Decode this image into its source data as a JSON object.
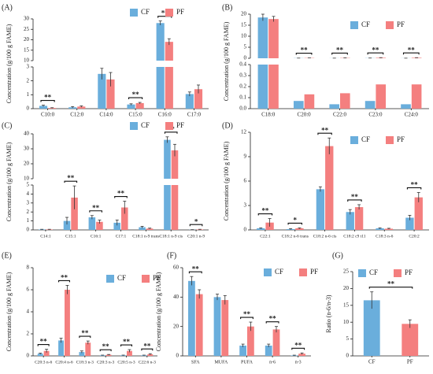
{
  "chart_data": [
    {
      "panel_label": "(A)",
      "type": "bar",
      "y_label": "Concentration (g/100 g FAME)",
      "legend": "upper right",
      "categories": [
        "C10:0",
        "C12:0",
        "C14:0",
        "C15:0",
        "C16:0",
        "C17:0"
      ],
      "series": [
        {
          "name": "CF",
          "color": "#6aaedc",
          "values": [
            0.2,
            0.1,
            2.5,
            0.3,
            28,
            1.05
          ],
          "errors": [
            0.05,
            0.05,
            0.4,
            0.05,
            1,
            0.15
          ]
        },
        {
          "name": "PF",
          "color": "#f47f7f",
          "values": [
            0.05,
            0.15,
            2.1,
            0.4,
            19,
            1.4
          ],
          "errors": [
            0.02,
            0.05,
            0.5,
            0.05,
            1.5,
            0.3
          ]
        }
      ],
      "significance": [
        "**",
        null,
        null,
        "**",
        "**",
        null
      ],
      "segments": [
        {
          "ylim": [
            0,
            3
          ],
          "yticks": [
            0,
            1,
            2,
            3
          ]
        },
        {
          "ylim": [
            10,
            30
          ],
          "yticks": [
            10,
            15,
            20,
            25,
            30
          ]
        }
      ]
    },
    {
      "panel_label": "(B)",
      "type": "bar",
      "y_label": "Concentration (g/100 g FAME)",
      "legend": "upper right",
      "categories": [
        "C18:0",
        "C20:0",
        "C22:0",
        "C23:0",
        "C24:0"
      ],
      "series": [
        {
          "name": "CF",
          "color": "#6aaedc",
          "values": [
            18.5,
            0.07,
            0.04,
            0.07,
            0.04
          ],
          "errors": [
            1.5,
            0.01,
            0.02,
            0.03,
            0.01
          ]
        },
        {
          "name": "PF",
          "color": "#f47f7f",
          "values": [
            17.8,
            0.13,
            0.14,
            0.22,
            0.22
          ],
          "errors": [
            1.2,
            0.03,
            0.06,
            0.07,
            0.06
          ]
        }
      ],
      "significance": [
        null,
        "**",
        "**",
        "**",
        "**"
      ],
      "segments": [
        {
          "ylim": [
            0,
            0.4
          ],
          "yticks": [
            {
              "value": 0,
              "label": "0.0"
            },
            0.1,
            0.2,
            0.3,
            0.4
          ]
        },
        {
          "ylim": [
            0,
            20
          ],
          "yticks": [
            0,
            5,
            10,
            15,
            20
          ]
        }
      ]
    },
    {
      "panel_label": "(C)",
      "type": "bar",
      "y_label": "Concentration (g/100 g FAME)",
      "legend": "upper right",
      "categories": [
        "C14:1",
        "C15:1",
        "C16:1",
        "C17:1",
        "C18:1 n-9 trans",
        "C18:1 n-9 cis",
        "C20:1 n-9"
      ],
      "series": [
        {
          "name": "CF",
          "color": "#6aaedc",
          "values": [
            0.05,
            1.0,
            1.4,
            0.8,
            0.3,
            36,
            0.02
          ],
          "errors": [
            0.02,
            0.4,
            0.2,
            0.3,
            0.1,
            2,
            0.01
          ]
        },
        {
          "name": "PF",
          "color": "#f47f7f",
          "values": [
            0.05,
            3.6,
            0.9,
            2.5,
            0.15,
            29,
            0.05
          ],
          "errors": [
            0.02,
            1.3,
            0.2,
            0.7,
            0.05,
            4,
            0.02
          ]
        }
      ],
      "significance": [
        null,
        "**",
        "**",
        "**",
        null,
        "**",
        "*"
      ],
      "segments": [
        {
          "ylim": [
            0,
            5
          ],
          "yticks": [
            0,
            1,
            2,
            3,
            4,
            5
          ]
        },
        {
          "ylim": [
            10,
            40
          ],
          "yticks": [
            10,
            20,
            30,
            40
          ]
        }
      ]
    },
    {
      "panel_label": "(D)",
      "type": "bar",
      "y_label": "Concentration (g/100 g FAME)",
      "legend": "upper right",
      "categories": [
        "C22:1",
        "C18:2 n-6 trans",
        "C18:2 n-6 cis",
        "C18:2 c9 t11",
        "C18:3 n-6",
        "C20:2"
      ],
      "series": [
        {
          "name": "CF",
          "color": "#6aaedc",
          "values": [
            0.2,
            0.1,
            5,
            2.2,
            0.2,
            1.5
          ],
          "errors": [
            0.05,
            0.05,
            0.3,
            0.3,
            0.05,
            0.3
          ]
        },
        {
          "name": "PF",
          "color": "#f47f7f",
          "values": [
            0.9,
            0.2,
            10.3,
            2.8,
            0.15,
            4.0
          ],
          "errors": [
            0.5,
            0.05,
            1.0,
            0.3,
            0.05,
            0.6
          ]
        }
      ],
      "significance": [
        "**",
        "*",
        "**",
        "**",
        null,
        "**"
      ],
      "ylim": [
        0,
        12
      ],
      "yticks": [
        0,
        3,
        6,
        9,
        12
      ]
    },
    {
      "panel_label": "(E)",
      "type": "bar",
      "y_label": "Concentration (g/100 g FAME)",
      "legend": "upper right",
      "categories": [
        "C20:3 n-6",
        "C20:4 n-6",
        "C18:3 n-3",
        "C20:3 n-3",
        "C20:5 n-3",
        "C22:6 n-3"
      ],
      "series": [
        {
          "name": "CF",
          "color": "#6aaedc",
          "values": [
            0.2,
            1.4,
            0.35,
            0.05,
            0.05,
            0.05
          ],
          "errors": [
            0.05,
            0.2,
            0.1,
            0.02,
            0.02,
            0.02
          ]
        },
        {
          "name": "PF",
          "color": "#f47f7f",
          "values": [
            0.45,
            6.0,
            1.2,
            0.1,
            0.45,
            0.15
          ],
          "errors": [
            0.15,
            0.4,
            0.15,
            0.03,
            0.12,
            0.05
          ]
        }
      ],
      "significance": [
        "**",
        "**",
        "**",
        "**",
        "**",
        "**"
      ],
      "ylim": [
        0,
        8
      ],
      "yticks": [
        0,
        2,
        4,
        6,
        8
      ]
    },
    {
      "panel_label": "(F)",
      "type": "bar",
      "y_label": "Concentration (g/100 g FAME)",
      "legend": "upper right",
      "categories": [
        "SFA",
        "MUFA",
        "PUFA",
        "n-6",
        "n-3"
      ],
      "series": [
        {
          "name": "CF",
          "color": "#6aaedc",
          "values": [
            51,
            40,
            7,
            7,
            0.3
          ],
          "errors": [
            3,
            2,
            1,
            1,
            0.2
          ]
        },
        {
          "name": "PF",
          "color": "#f47f7f",
          "values": [
            42,
            38,
            20,
            18,
            1.5
          ],
          "errors": [
            3,
            3,
            3,
            2,
            0.5
          ]
        }
      ],
      "significance": [
        "**",
        null,
        "**",
        "**",
        "**"
      ],
      "ylim": [
        0,
        60
      ],
      "yticks": [
        0,
        20,
        40,
        60
      ]
    },
    {
      "panel_label": "(G)",
      "type": "bar",
      "y_label": "Ratio (n-6/n-3)",
      "legend": "upper left",
      "categories": [
        "CF",
        "PF"
      ],
      "series": [
        {
          "name": "CF",
          "color": "#6aaedc",
          "values": [
            16.5,
            null
          ],
          "errors": [
            2.5,
            null
          ]
        },
        {
          "name": "PF",
          "color": "#f47f7f",
          "values": [
            null,
            9.5
          ],
          "errors": [
            null,
            1.2
          ]
        }
      ],
      "significance": [
        "**"
      ],
      "ylim": [
        0,
        25
      ],
      "yticks": [
        0,
        5,
        10,
        15,
        20,
        25
      ]
    }
  ]
}
